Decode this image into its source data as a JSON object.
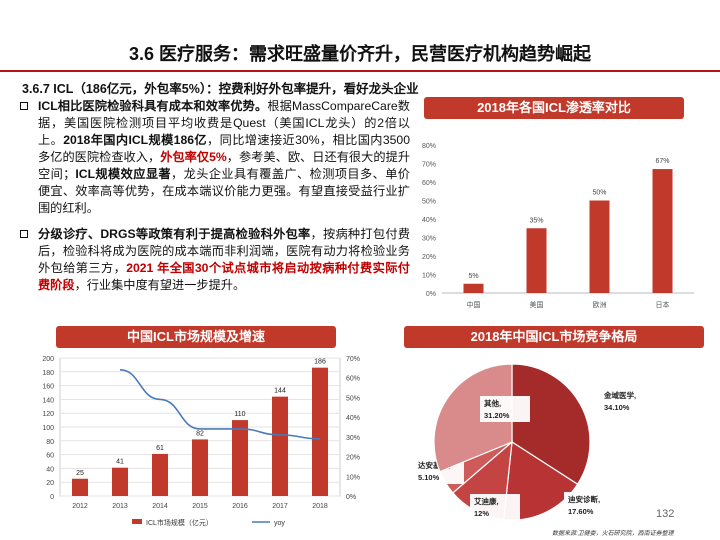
{
  "slide": {
    "title": "3.6 医疗服务：需求旺盛量价齐升，民营医疗机构趋势崛起",
    "subtitle": "3.6.7 ICL（186亿元，外包率5%）：控费利好外包率提升，看好龙头企业",
    "page_number": "132",
    "source": "数据来源:卫健委，火石研究院，西南证券整理"
  },
  "bullets": [
    {
      "segments": [
        {
          "text": "ICL相比医院检验科具有成本和效率优势。",
          "style": "b"
        },
        {
          "text": "根据MassCompareCare数据，美国医院检测项目平均收费是Quest（美国ICL龙头）的2倍以上。",
          "style": ""
        },
        {
          "text": "2018年国内ICL规模186亿",
          "style": "b"
        },
        {
          "text": "，同比增速接近30%，相比国内3500多亿的医院检查收入，",
          "style": ""
        },
        {
          "text": "外包率仅5%",
          "style": "red"
        },
        {
          "text": "，参考美、欧、日还有很大的提升空间；",
          "style": ""
        },
        {
          "text": "ICL规模效应显著",
          "style": "b"
        },
        {
          "text": "，龙头企业具有覆盖广、检测项目多、单价便宜、效率高等优势，在成本端议价能力更强。有望直接受益行业扩围的红利。",
          "style": ""
        }
      ]
    },
    {
      "segments": [
        {
          "text": "分级诊疗、DRGS等政策有利于提高检验科外包率",
          "style": "b"
        },
        {
          "text": "，按病种打包付费后，检验科将成为医院的成本端而非利润端，医院有动力将检验业务外包给第三方，",
          "style": ""
        },
        {
          "text": "2021 年全国30个试点城市将启动按病种付费实际付费阶段",
          "style": "red"
        },
        {
          "text": "，行业集中度有望进一步提升。",
          "style": ""
        }
      ]
    }
  ],
  "banners": {
    "penetration": "2018年各国ICL渗透率对比",
    "market": "中国ICL市场规模及增速",
    "share": "2018年中国ICL市场竞争格局"
  },
  "chart_data": [
    {
      "type": "bar",
      "title": "2018年各国ICL渗透率对比",
      "categories": [
        "中国",
        "美国",
        "欧洲",
        "日本"
      ],
      "values": [
        5,
        35,
        50,
        67
      ],
      "value_labels": [
        "5%",
        "35%",
        "50%",
        "67%"
      ],
      "ylim": [
        0,
        80
      ],
      "yticks": [
        "0%",
        "10%",
        "20%",
        "30%",
        "40%",
        "50%",
        "60%",
        "70%",
        "80%"
      ],
      "color": "#c0392b"
    },
    {
      "type": "bar",
      "title": "中国ICL市场规模及增速",
      "categories": [
        "2012",
        "2013",
        "2014",
        "2015",
        "2016",
        "2017",
        "2018"
      ],
      "series": [
        {
          "name": "ICL市场规模（亿元）",
          "values": [
            25,
            41,
            61,
            82,
            110,
            144,
            186
          ],
          "color": "#c0392b"
        },
        {
          "name": "yoy",
          "values": [
            null,
            64,
            49,
            34,
            34,
            31,
            29
          ],
          "color": "#4a7ab8",
          "axis": "right"
        }
      ],
      "ylim": [
        0,
        200
      ],
      "yticks": [
        "0",
        "20",
        "40",
        "60",
        "80",
        "100",
        "120",
        "140",
        "160",
        "180",
        "200"
      ],
      "y2lim": [
        0,
        70
      ],
      "y2ticks": [
        "0%",
        "10%",
        "20%",
        "30%",
        "40%",
        "50%",
        "60%",
        "70%"
      ]
    },
    {
      "type": "pie",
      "title": "2018年中国ICL市场竞争格局",
      "slices": [
        {
          "label": "金域医学,",
          "value": 34.1,
          "pct": "34.10%",
          "color": "#a52a2a"
        },
        {
          "label": "迪安诊断,",
          "value": 17.6,
          "pct": "17.60%",
          "color": "#b83434"
        },
        {
          "label": "艾迪康,",
          "value": 12,
          "pct": "12%",
          "color": "#c44444"
        },
        {
          "label": "达安基因,",
          "value": 5.1,
          "pct": "5.10%",
          "color": "#cf5a5a"
        },
        {
          "label": "其他,",
          "value": 31.2,
          "pct": "31.20%",
          "color": "#d98a8a"
        }
      ]
    }
  ]
}
